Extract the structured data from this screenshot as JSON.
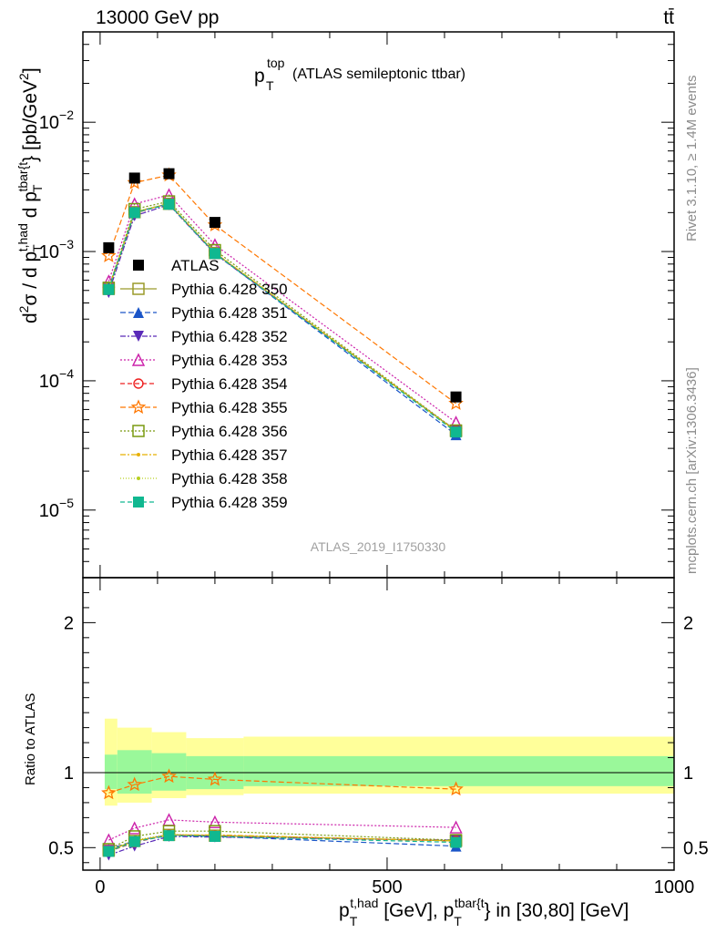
{
  "header": {
    "beam": "13000 GeV pp",
    "process": "tt̄",
    "side_rivet": "Rivet 3.1.10, ≥ 1.4M events",
    "side_mcplots": "mcplots.cern.ch [arXiv:1306.3436]"
  },
  "chart_data": {
    "type": "line",
    "title_main": "p",
    "title_sup": "top",
    "title_sub": "T",
    "title_rest": "(ATLAS semileptonic ttbar)",
    "analysis_label": "ATLAS_2019_I1750330",
    "x_bins": [
      [
        0,
        30
      ],
      [
        30,
        90
      ],
      [
        90,
        150
      ],
      [
        150,
        250
      ],
      [
        250,
        1000
      ]
    ],
    "x": [
      15,
      60,
      120,
      200,
      620
    ],
    "xlim": [
      -30,
      1000
    ],
    "x_ticks": [
      0,
      500,
      1000
    ],
    "ylim_main": [
      3e-06,
      0.05
    ],
    "yscale_main": "log",
    "y_ticks_main": [
      "10^-2",
      "10^-3",
      "10^-4",
      "10^-5"
    ],
    "ylim_ratio": [
      0.35,
      2.3
    ],
    "y_ticks_ratio": [
      "0.5",
      "1",
      "2"
    ],
    "ratio_ylabel": "Ratio to ATLAS",
    "reference": {
      "name": "ATLAS",
      "color": "#000000",
      "values": [
        0.00107,
        0.0037,
        0.004,
        0.00168,
        7.5e-05
      ],
      "band_stat_total": [
        [
          0.89,
          1.12
        ],
        [
          0.86,
          1.15
        ],
        [
          0.88,
          1.13
        ],
        [
          0.89,
          1.11
        ],
        [
          0.91,
          1.11
        ]
      ],
      "band_total": [
        [
          0.78,
          1.36
        ],
        [
          0.8,
          1.3
        ],
        [
          0.83,
          1.27
        ],
        [
          0.85,
          1.23
        ],
        [
          0.86,
          1.24
        ]
      ]
    },
    "series": [
      {
        "name": "Pythia 6.428 350",
        "color": "#9a9a2a",
        "marker": "square-open",
        "dash": "",
        "ratio": [
          0.48,
          0.545,
          0.585,
          0.58,
          0.545
        ]
      },
      {
        "name": "Pythia 6.428 351",
        "color": "#1a55c8",
        "marker": "triangle-up",
        "dash": "6,3",
        "ratio": [
          0.49,
          0.545,
          0.585,
          0.575,
          0.51
        ]
      },
      {
        "name": "Pythia 6.428 352",
        "color": "#5a2ab8",
        "marker": "triangle-down",
        "dash": "6,2,2,2",
        "ratio": [
          0.45,
          0.51,
          0.575,
          0.57,
          0.55
        ]
      },
      {
        "name": "Pythia 6.428 353",
        "color": "#cc22aa",
        "marker": "triangle-up-open",
        "dash": "2,2",
        "ratio": [
          0.55,
          0.63,
          0.685,
          0.67,
          0.635
        ]
      },
      {
        "name": "Pythia 6.428 354",
        "color": "#ee2222",
        "marker": "circle-open",
        "dash": "5,3",
        "ratio": [
          0.475,
          0.535,
          0.585,
          0.58,
          0.545
        ]
      },
      {
        "name": "Pythia 6.428 355",
        "color": "#ff7700",
        "marker": "star-open",
        "dash": "6,3",
        "ratio": [
          0.865,
          0.92,
          0.975,
          0.955,
          0.89
        ]
      },
      {
        "name": "Pythia 6.428 356",
        "color": "#7a9a10",
        "marker": "square-open",
        "dash": "2,2",
        "ratio": [
          0.49,
          0.575,
          0.61,
          0.61,
          0.55
        ]
      },
      {
        "name": "Pythia 6.428 357",
        "color": "#e8b000",
        "marker": "dot",
        "dash": "6,2,2,2",
        "ratio": [
          0.48,
          0.545,
          0.585,
          0.585,
          0.545
        ]
      },
      {
        "name": "Pythia 6.428 358",
        "color": "#b8d020",
        "marker": "dot",
        "dash": "1,2",
        "ratio": [
          0.48,
          0.55,
          0.59,
          0.58,
          0.545
        ]
      },
      {
        "name": "Pythia 6.428 359",
        "color": "#10b890",
        "marker": "square",
        "dash": "5,3",
        "ratio": [
          0.475,
          0.54,
          0.58,
          0.575,
          0.535
        ]
      }
    ]
  }
}
